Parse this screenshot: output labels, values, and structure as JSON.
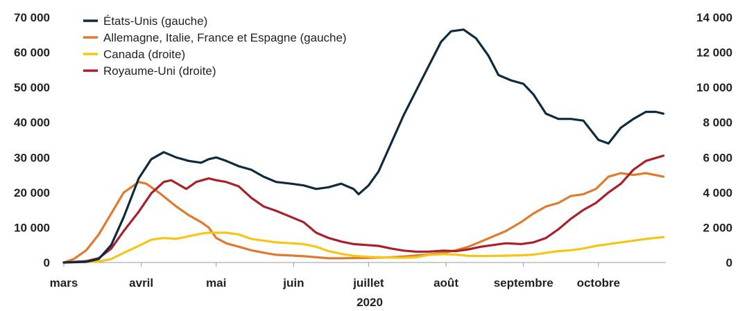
{
  "chart_data": {
    "type": "line",
    "xlabel": "2020",
    "x_tick_labels": [
      "mars",
      "avril",
      "mai",
      "juin",
      "juillet",
      "août",
      "septembre",
      "octobre"
    ],
    "y_left": {
      "lim": [
        0,
        70000
      ],
      "tick_labels": [
        "0",
        "10 000",
        "20 000",
        "30 000",
        "40 000",
        "50 000",
        "60 000",
        "70 000"
      ]
    },
    "y_right": {
      "lim": [
        0,
        14000
      ],
      "tick_labels": [
        "0",
        "2 000",
        "4 000",
        "6 000",
        "8 000",
        "10 000",
        "12 000",
        "14 000"
      ]
    },
    "grid": false,
    "legend_position": "top-left",
    "series": [
      {
        "name": "États-Unis (gauche)",
        "axis": "left",
        "color": "#0d2a3e",
        "points": [
          [
            "03-01",
            0
          ],
          [
            "03-10",
            200
          ],
          [
            "03-15",
            1000
          ],
          [
            "03-20",
            5000
          ],
          [
            "03-25",
            13000
          ],
          [
            "03-31",
            24000
          ],
          [
            "04-05",
            29500
          ],
          [
            "04-10",
            31500
          ],
          [
            "04-15",
            30000
          ],
          [
            "04-20",
            29000
          ],
          [
            "04-25",
            28500
          ],
          [
            "04-28",
            29500
          ],
          [
            "05-01",
            30000
          ],
          [
            "05-05",
            29000
          ],
          [
            "05-10",
            27500
          ],
          [
            "05-15",
            26500
          ],
          [
            "05-20",
            24500
          ],
          [
            "05-25",
            23000
          ],
          [
            "05-31",
            22500
          ],
          [
            "06-05",
            22000
          ],
          [
            "06-10",
            21000
          ],
          [
            "06-15",
            21500
          ],
          [
            "06-20",
            22500
          ],
          [
            "06-25",
            21000
          ],
          [
            "06-27",
            19500
          ],
          [
            "07-01",
            22000
          ],
          [
            "07-05",
            26000
          ],
          [
            "07-10",
            34000
          ],
          [
            "07-15",
            42000
          ],
          [
            "07-20",
            49000
          ],
          [
            "07-25",
            56000
          ],
          [
            "07-30",
            63000
          ],
          [
            "08-03",
            66000
          ],
          [
            "08-08",
            66500
          ],
          [
            "08-13",
            64000
          ],
          [
            "08-18",
            59000
          ],
          [
            "08-22",
            53500
          ],
          [
            "08-27",
            52000
          ],
          [
            "09-01",
            51000
          ],
          [
            "09-05",
            48000
          ],
          [
            "09-10",
            42500
          ],
          [
            "09-15",
            41000
          ],
          [
            "09-20",
            41000
          ],
          [
            "09-25",
            40500
          ],
          [
            "10-01",
            35000
          ],
          [
            "10-05",
            34000
          ],
          [
            "10-10",
            38500
          ],
          [
            "10-15",
            41000
          ],
          [
            "10-20",
            43000
          ],
          [
            "10-24",
            43000
          ],
          [
            "10-27",
            42500
          ]
        ]
      },
      {
        "name": "Allemagne, Italie, France et Espagne (gauche)",
        "axis": "left",
        "color": "#e07a2e",
        "points": [
          [
            "03-01",
            0
          ],
          [
            "03-05",
            1000
          ],
          [
            "03-10",
            3500
          ],
          [
            "03-15",
            8000
          ],
          [
            "03-20",
            14000
          ],
          [
            "03-25",
            20000
          ],
          [
            "03-31",
            23000
          ],
          [
            "04-03",
            22500
          ],
          [
            "04-08",
            20000
          ],
          [
            "04-15",
            16000
          ],
          [
            "04-20",
            13500
          ],
          [
            "04-25",
            11500
          ],
          [
            "04-28",
            10000
          ],
          [
            "05-01",
            7000
          ],
          [
            "05-05",
            5500
          ],
          [
            "05-10",
            4500
          ],
          [
            "05-15",
            3500
          ],
          [
            "05-20",
            2800
          ],
          [
            "05-25",
            2200
          ],
          [
            "05-31",
            2000
          ],
          [
            "06-05",
            1800
          ],
          [
            "06-10",
            1500
          ],
          [
            "06-15",
            1200
          ],
          [
            "06-20",
            1200
          ],
          [
            "06-30",
            1300
          ],
          [
            "07-05",
            1400
          ],
          [
            "07-10",
            1500
          ],
          [
            "07-15",
            1700
          ],
          [
            "07-20",
            2000
          ],
          [
            "07-25",
            2300
          ],
          [
            "07-31",
            2800
          ],
          [
            "08-05",
            3500
          ],
          [
            "08-10",
            4500
          ],
          [
            "08-15",
            6000
          ],
          [
            "08-20",
            7500
          ],
          [
            "08-25",
            9000
          ],
          [
            "08-31",
            11500
          ],
          [
            "09-05",
            14000
          ],
          [
            "09-10",
            16000
          ],
          [
            "09-15",
            17000
          ],
          [
            "09-20",
            19000
          ],
          [
            "09-25",
            19500
          ],
          [
            "09-30",
            21000
          ],
          [
            "10-05",
            24500
          ],
          [
            "10-10",
            25500
          ],
          [
            "10-15",
            25000
          ],
          [
            "10-20",
            25500
          ],
          [
            "10-27",
            24500
          ]
        ]
      },
      {
        "name": "Canada (droite)",
        "axis": "right",
        "color": "#f5c518",
        "points": [
          [
            "03-01",
            0
          ],
          [
            "03-15",
            50
          ],
          [
            "03-20",
            200
          ],
          [
            "03-25",
            550
          ],
          [
            "03-31",
            950
          ],
          [
            "04-05",
            1300
          ],
          [
            "04-10",
            1400
          ],
          [
            "04-15",
            1350
          ],
          [
            "04-20",
            1500
          ],
          [
            "04-25",
            1650
          ],
          [
            "04-28",
            1700
          ],
          [
            "05-05",
            1700
          ],
          [
            "05-10",
            1600
          ],
          [
            "05-15",
            1350
          ],
          [
            "05-20",
            1250
          ],
          [
            "05-25",
            1150
          ],
          [
            "05-31",
            1100
          ],
          [
            "06-05",
            1050
          ],
          [
            "06-10",
            900
          ],
          [
            "06-15",
            650
          ],
          [
            "06-20",
            500
          ],
          [
            "06-25",
            380
          ],
          [
            "06-30",
            330
          ],
          [
            "07-05",
            300
          ],
          [
            "07-10",
            280
          ],
          [
            "07-15",
            270
          ],
          [
            "07-20",
            300
          ],
          [
            "07-25",
            430
          ],
          [
            "07-31",
            480
          ],
          [
            "08-05",
            450
          ],
          [
            "08-10",
            380
          ],
          [
            "08-15",
            370
          ],
          [
            "08-20",
            380
          ],
          [
            "08-25",
            390
          ],
          [
            "08-31",
            410
          ],
          [
            "09-05",
            450
          ],
          [
            "09-10",
            550
          ],
          [
            "09-15",
            650
          ],
          [
            "09-20",
            700
          ],
          [
            "09-25",
            800
          ],
          [
            "09-30",
            950
          ],
          [
            "10-05",
            1050
          ],
          [
            "10-10",
            1150
          ],
          [
            "10-15",
            1250
          ],
          [
            "10-20",
            1350
          ],
          [
            "10-27",
            1450
          ]
        ]
      },
      {
        "name": "Royaume-Uni (droite)",
        "axis": "right",
        "color": "#a8202a",
        "points": [
          [
            "03-01",
            0
          ],
          [
            "03-10",
            80
          ],
          [
            "03-15",
            250
          ],
          [
            "03-20",
            800
          ],
          [
            "03-25",
            1800
          ],
          [
            "03-31",
            2900
          ],
          [
            "04-05",
            3950
          ],
          [
            "04-10",
            4600
          ],
          [
            "04-13",
            4700
          ],
          [
            "04-16",
            4450
          ],
          [
            "04-19",
            4200
          ],
          [
            "04-23",
            4600
          ],
          [
            "04-28",
            4800
          ],
          [
            "05-01",
            4700
          ],
          [
            "05-05",
            4600
          ],
          [
            "05-10",
            4350
          ],
          [
            "05-15",
            3700
          ],
          [
            "05-20",
            3200
          ],
          [
            "05-25",
            2950
          ],
          [
            "05-31",
            2600
          ],
          [
            "06-05",
            2300
          ],
          [
            "06-10",
            1700
          ],
          [
            "06-15",
            1400
          ],
          [
            "06-20",
            1200
          ],
          [
            "06-25",
            1050
          ],
          [
            "06-30",
            1000
          ],
          [
            "07-05",
            950
          ],
          [
            "07-10",
            800
          ],
          [
            "07-15",
            680
          ],
          [
            "07-20",
            620
          ],
          [
            "07-25",
            620
          ],
          [
            "07-31",
            680
          ],
          [
            "08-05",
            650
          ],
          [
            "08-10",
            750
          ],
          [
            "08-15",
            900
          ],
          [
            "08-20",
            1000
          ],
          [
            "08-25",
            1100
          ],
          [
            "08-31",
            1050
          ],
          [
            "09-05",
            1150
          ],
          [
            "09-10",
            1400
          ],
          [
            "09-15",
            1900
          ],
          [
            "09-20",
            2500
          ],
          [
            "09-25",
            3000
          ],
          [
            "09-30",
            3400
          ],
          [
            "10-05",
            4000
          ],
          [
            "10-10",
            4500
          ],
          [
            "10-15",
            5300
          ],
          [
            "10-20",
            5800
          ],
          [
            "10-27",
            6100
          ]
        ]
      }
    ]
  }
}
